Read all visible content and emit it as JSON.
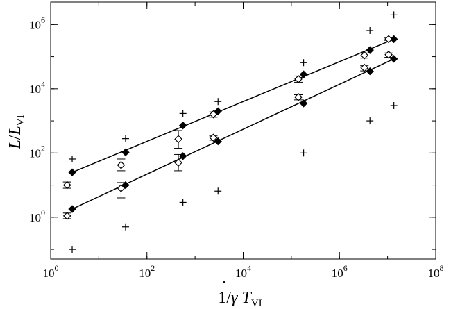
{
  "chart_data": {
    "type": "scatter",
    "title": "",
    "xscale": "log",
    "yscale": "log",
    "xlim": [
      1,
      100000000
    ],
    "ylim": [
      0.05,
      5000000
    ],
    "grid": false,
    "legend": "none",
    "xticks": [
      {
        "value": 1,
        "base": "10",
        "exp": "0"
      },
      {
        "value": 100,
        "base": "10",
        "exp": "2"
      },
      {
        "value": 10000,
        "base": "10",
        "exp": "4"
      },
      {
        "value": 1000000,
        "base": "10",
        "exp": "6"
      },
      {
        "value": 100000000,
        "base": "10",
        "exp": "8"
      }
    ],
    "yticks": [
      {
        "value": 1,
        "base": "10",
        "exp": "0"
      },
      {
        "value": 100,
        "base": "10",
        "exp": "2"
      },
      {
        "value": 10000,
        "base": "10",
        "exp": "4"
      },
      {
        "value": 1000000,
        "base": "10",
        "exp": "6"
      }
    ],
    "xlabel": {
      "prefix": "1/",
      "gamma": "γ",
      "dot": "˙",
      "T": "T",
      "sub": "VI"
    },
    "ylabel": {
      "L1": "L",
      "slash": "/",
      "L2": "L",
      "sub": "VI"
    },
    "series": [
      {
        "marker": "filled-diamond",
        "fit_line": true,
        "x": [
          2.8,
          36,
          560,
          3000,
          180000,
          4300000,
          13500000
        ],
        "y": [
          25,
          105,
          720,
          2000,
          28000,
          160000,
          350000
        ],
        "xerr_factor": 1.12
      },
      {
        "marker": "filled-diamond",
        "fit_line": true,
        "x": [
          2.8,
          36,
          560,
          3000,
          180000,
          4300000,
          13500000
        ],
        "y": [
          1.8,
          10,
          80,
          230,
          3500,
          35000,
          85000
        ],
        "xerr_factor": 1.12
      },
      {
        "marker": "open-diamond",
        "fit_line": false,
        "x": [
          2.2,
          29,
          450,
          2400,
          140000,
          3300000,
          10500000
        ],
        "y": [
          10,
          42,
          270,
          1600,
          20000,
          110000,
          350000
        ],
        "ylow": [
          8,
          28,
          140,
          1300,
          16000,
          90000,
          320000
        ],
        "yhigh": [
          12.5,
          65,
          500,
          1900,
          25000,
          130000,
          380000
        ]
      },
      {
        "marker": "open-diamond",
        "fit_line": false,
        "x": [
          2.2,
          29,
          450,
          2400,
          140000,
          3300000,
          10500000
        ],
        "y": [
          1.1,
          8,
          50,
          300,
          5500,
          45000,
          115000
        ],
        "ylow": [
          0.9,
          4,
          28,
          250,
          4500,
          36000,
          95000
        ],
        "yhigh": [
          1.35,
          12,
          90,
          340,
          6500,
          52000,
          130000
        ]
      },
      {
        "marker": "plus",
        "fit_line": false,
        "x": [
          2.8,
          36,
          560,
          3000,
          180000,
          4300000,
          13500000
        ],
        "y": [
          65,
          280,
          1700,
          4000,
          65000,
          650000,
          2000000
        ]
      },
      {
        "marker": "plus",
        "fit_line": false,
        "x": [
          2.8,
          36,
          560,
          3000,
          180000,
          4300000,
          13500000
        ],
        "y": [
          0.1,
          0.5,
          2.9,
          6.5,
          100,
          1000,
          3000
        ]
      }
    ]
  }
}
